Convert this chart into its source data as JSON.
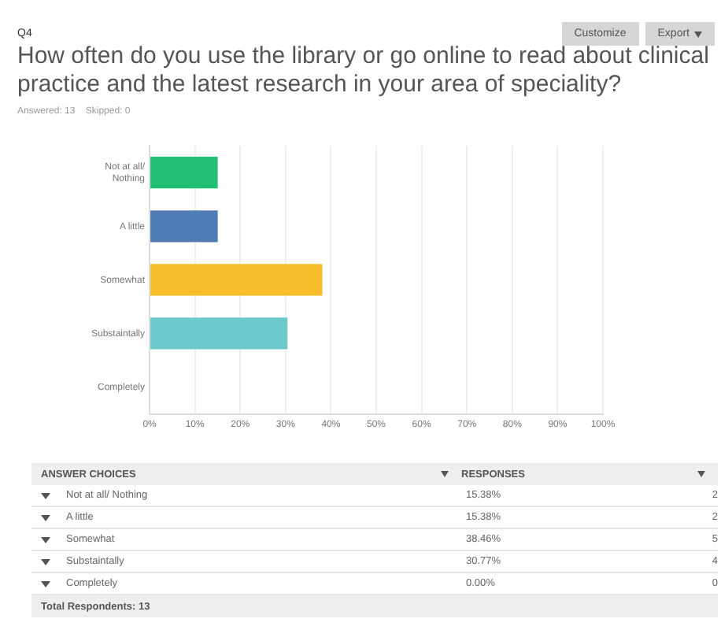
{
  "chart_data": {
    "type": "bar",
    "orientation": "horizontal",
    "title": "How often do you use the library or go online to read about clinical practice and the latest research in your area of speciality?",
    "subtitle": "Answered: 13    Skipped: 0",
    "categories": [
      "Not at all/ Nothing",
      "A little",
      "Somewhat",
      "Substaintally",
      "Completely"
    ],
    "values": [
      15.38,
      15.38,
      38.46,
      30.77,
      0
    ],
    "colors": [
      "#21bf73",
      "#507cb6",
      "#f7bd2a",
      "#6cc9c9",
      "#a0a0a0"
    ],
    "xlim": [
      0,
      100
    ],
    "xticks": [
      {
        "value": 0,
        "label": "0%"
      },
      {
        "value": 10,
        "label": "10%"
      },
      {
        "value": 20,
        "label": "20%"
      },
      {
        "value": 30,
        "label": "30%"
      },
      {
        "value": 40,
        "label": "40%"
      },
      {
        "value": 50,
        "label": "50%"
      },
      {
        "value": 60,
        "label": "60%"
      },
      {
        "value": 70,
        "label": "70%"
      },
      {
        "value": 80,
        "label": "80%"
      },
      {
        "value": 90,
        "label": "90%"
      },
      {
        "value": 100,
        "label": "100%"
      }
    ],
    "grid": "x",
    "legend": false,
    "annotations": [
      "Q4",
      "Customize",
      "Export",
      "ANSWER CHOICES",
      "RESPONSES",
      "15.38%",
      "15.38%",
      "38.46%",
      "30.77%",
      "0.00%",
      "2",
      "2",
      "5",
      "4",
      "0",
      "Total Respondents: 13"
    ]
  }
}
